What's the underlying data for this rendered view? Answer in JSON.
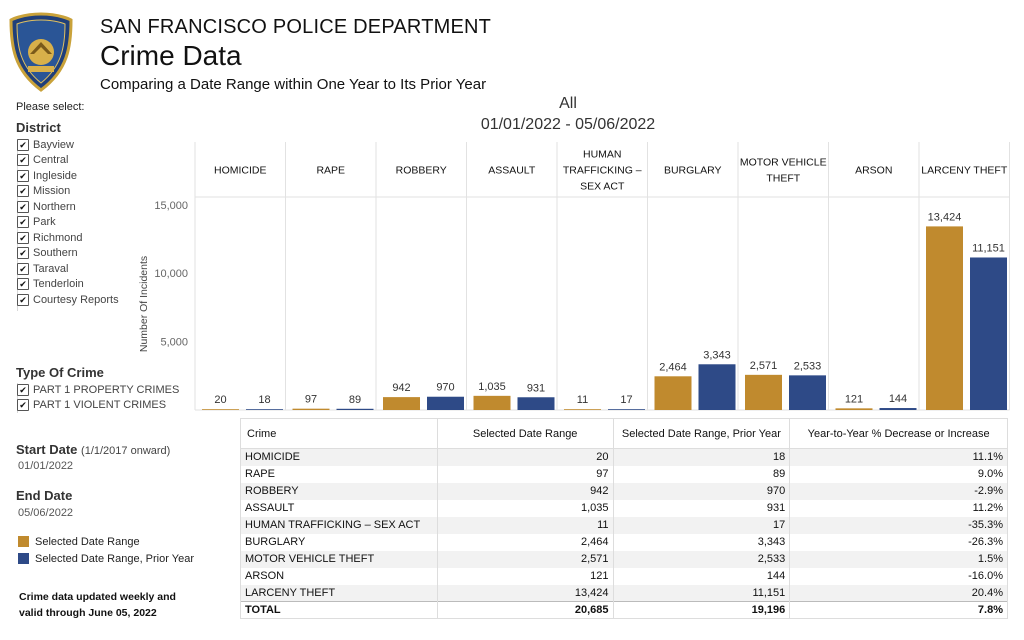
{
  "header": {
    "department": "SAN FRANCISCO POLICE DEPARTMENT",
    "title": "Crime Data",
    "subtitle": "Comparing a Date Range within One Year to Its Prior Year",
    "badge_text": "SAN FRANCISCO POLICE"
  },
  "filters": {
    "please_select": "Please select:",
    "district_label": "District",
    "districts": [
      "Bayview",
      "Central",
      "Ingleside",
      "Mission",
      "Northern",
      "Park",
      "Richmond",
      "Southern",
      "Taraval",
      "Tenderloin",
      "Courtesy Reports"
    ],
    "type_label": "Type Of Crime",
    "types": [
      "PART 1 PROPERTY CRIMES",
      "PART 1 VIOLENT CRIMES"
    ],
    "check_glyph": "✔"
  },
  "dates": {
    "start_label": "Start Date",
    "start_note": "(1/1/2017 onward)",
    "start_value": "01/01/2022",
    "end_label": "End Date",
    "end_value": "05/06/2022"
  },
  "legend": {
    "items": [
      {
        "label": "Selected Date Range",
        "color": "#c08a2e"
      },
      {
        "label": "Selected Date Range, Prior Year",
        "color": "#2e4a87"
      }
    ]
  },
  "footnote": {
    "line1": "Crime data updated weekly and",
    "line2": "valid through June 05, 2022"
  },
  "chart_header": {
    "scope": "All",
    "range": "01/01/2022 - 05/06/2022"
  },
  "chart_data": {
    "type": "bar",
    "ylabel": "Number Of Incidents",
    "ylim": [
      0,
      15500
    ],
    "yticks": [
      5000,
      10000,
      15000
    ],
    "ytick_labels": [
      "5,000",
      "10,000",
      "15,000"
    ],
    "categories": [
      "HOMICIDE",
      "RAPE",
      "ROBBERY",
      "ASSAULT",
      "HUMAN TRAFFICKING – SEX ACT",
      "BURGLARY",
      "MOTOR VEHICLE THEFT",
      "ARSON",
      "LARCENY THEFT"
    ],
    "category_lines": [
      [
        "HOMICIDE"
      ],
      [
        "RAPE"
      ],
      [
        "ROBBERY"
      ],
      [
        "ASSAULT"
      ],
      [
        "HUMAN",
        "TRAFFICKING –",
        "SEX ACT"
      ],
      [
        "BURGLARY"
      ],
      [
        "MOTOR VEHICLE",
        "THEFT"
      ],
      [
        "ARSON"
      ],
      [
        "LARCENY THEFT"
      ]
    ],
    "series": [
      {
        "name": "Selected Date Range",
        "values": [
          20,
          97,
          942,
          1035,
          11,
          2464,
          2571,
          121,
          13424
        ],
        "labels": [
          "20",
          "97",
          "942",
          "1,035",
          "11",
          "2,464",
          "2,571",
          "121",
          "13,424"
        ],
        "color": "#c08a2e"
      },
      {
        "name": "Selected Date Range, Prior Year",
        "values": [
          18,
          89,
          970,
          931,
          17,
          3343,
          2533,
          144,
          11151
        ],
        "labels": [
          "18",
          "89",
          "970",
          "931",
          "17",
          "3,343",
          "2,533",
          "144",
          "11,151"
        ],
        "color": "#2e4a87"
      }
    ],
    "grid": false
  },
  "table": {
    "headers": [
      "Crime",
      "Selected Date Range",
      "Selected Date Range, Prior Year",
      "Year-to-Year % Decrease or Increase"
    ],
    "rows": [
      [
        "HOMICIDE",
        "20",
        "18",
        "11.1%"
      ],
      [
        "RAPE",
        "97",
        "89",
        "9.0%"
      ],
      [
        "ROBBERY",
        "942",
        "970",
        "-2.9%"
      ],
      [
        "ASSAULT",
        "1,035",
        "931",
        "11.2%"
      ],
      [
        "HUMAN TRAFFICKING – SEX ACT",
        "11",
        "17",
        "-35.3%"
      ],
      [
        "BURGLARY",
        "2,464",
        "3,343",
        "-26.3%"
      ],
      [
        "MOTOR VEHICLE THEFT",
        "2,571",
        "2,533",
        "1.5%"
      ],
      [
        "ARSON",
        "121",
        "144",
        "-16.0%"
      ],
      [
        "LARCENY THEFT",
        "13,424",
        "11,151",
        "20.4%"
      ]
    ],
    "total": [
      "TOTAL",
      "20,685",
      "19,196",
      "7.8%"
    ]
  }
}
